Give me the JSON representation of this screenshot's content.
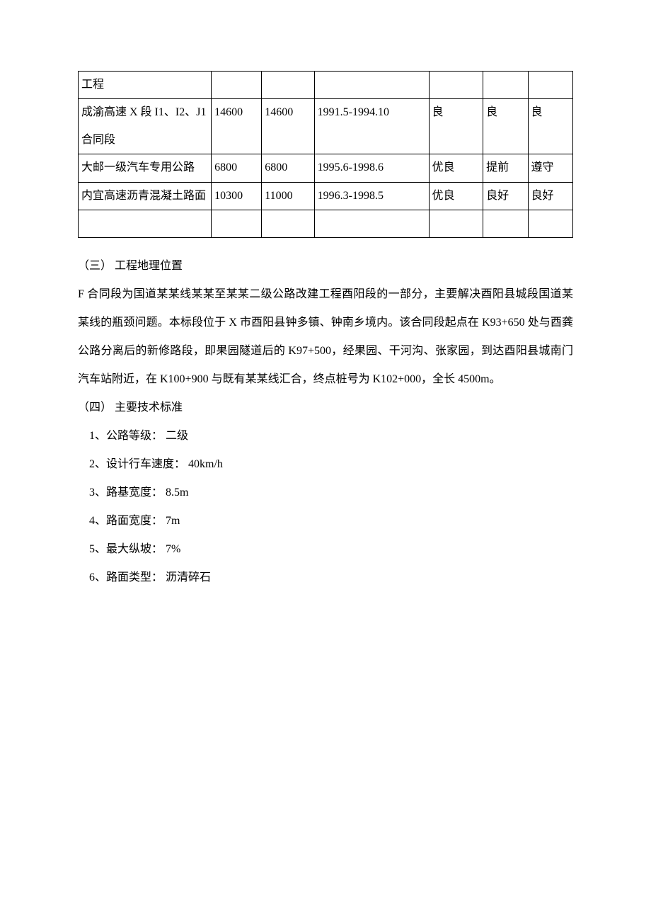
{
  "table": {
    "rows": [
      {
        "c1": "工程",
        "c2": "",
        "c3": "",
        "c4": "",
        "c5": "",
        "c6": "",
        "c7": ""
      },
      {
        "c1": "成渝高速 X 段 I1、I2、J1 合同段",
        "c2": "14600",
        "c3": "14600",
        "c4": "1991.5-1994.10",
        "c5": "良",
        "c6": "良",
        "c7": "良"
      },
      {
        "c1": "大邮一级汽车专用公路",
        "c2": "6800",
        "c3": "6800",
        "c4": "1995.6-1998.6",
        "c5": "优良",
        "c6": "提前",
        "c7": "遵守"
      },
      {
        "c1": "内宜高速沥青混凝土路面",
        "c2": "10300",
        "c3": "11000",
        "c4": "1996.3-1998.5",
        "c5": "优良",
        "c6": "良好",
        "c7": "良好"
      },
      {
        "c1": "",
        "c2": "",
        "c3": "",
        "c4": "",
        "c5": "",
        "c6": "",
        "c7": ""
      }
    ]
  },
  "sections": {
    "s3_title": "（三）  工程地理位置",
    "s3_body": "F 合同段为国道某某线某某至某某二级公路改建工程酉阳段的一部分，主要解决酉阳县城段国道某某线的瓶颈问题。本标段位于 X 市酉阳县钟多镇、钟南乡境内。该合同段起点在 K93+650 处与酉龚公路分离后的新修路段，即果园隧道后的 K97+500，经果园、干河沟、张家园，到达酉阳县城南门汽车站附近，在 K100+900 与既有某某线汇合，终点桩号为 K102+000，全长 4500m。",
    "s4_title": "（四）  主要技术标准",
    "specs": [
      "1、公路等级：  二级",
      "2、设计行车速度：  40km/h",
      "3、路基宽度：  8.5m",
      "4、路面宽度：  7m",
      "5、最大纵坡：  7%",
      "6、路面类型：  沥清碎石"
    ]
  }
}
